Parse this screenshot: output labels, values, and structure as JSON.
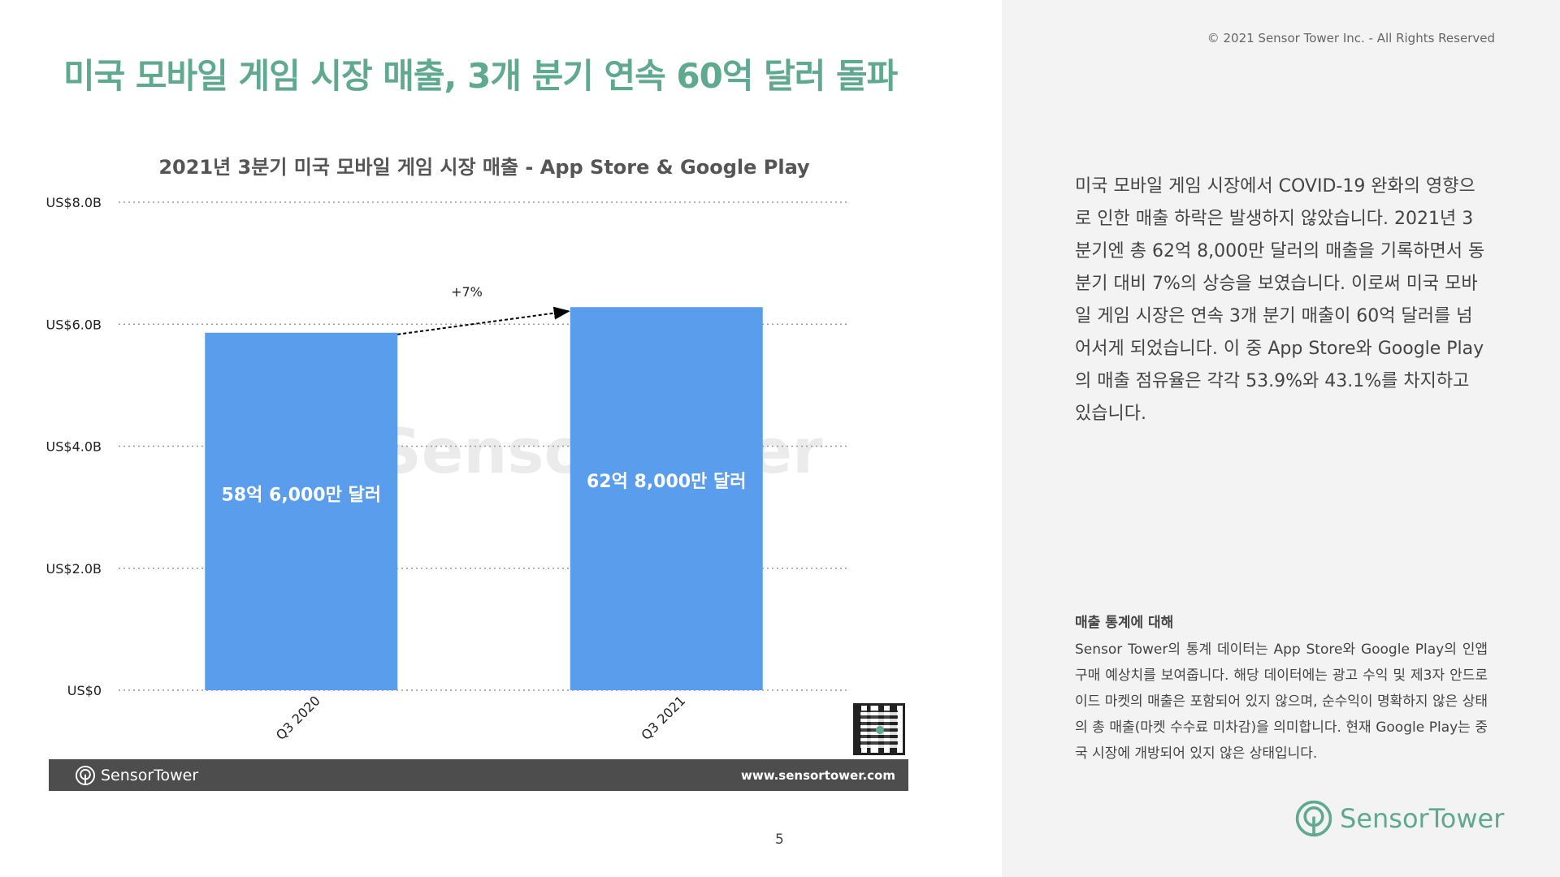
{
  "page": {
    "title": "미국 모바일 게임 시장 매출, 3개 분기 연속 60억 달러 돌파",
    "copyright": "© 2021 Sensor Tower Inc. - All Rights Reserved",
    "page_number": "5"
  },
  "chart_data": {
    "type": "bar",
    "title": "2021년 3분기 미국 모바일 게임 시장 매출 - App Store & Google Play",
    "categories": [
      "Q3 2020",
      "Q3 2021"
    ],
    "values": [
      5.86,
      6.28
    ],
    "value_unit": "US$ billions",
    "data_labels": [
      "58억 6,000만 달러",
      "62억 8,000만 달러"
    ],
    "ylim": [
      0,
      8
    ],
    "yticks": [
      0,
      2,
      4,
      6,
      8
    ],
    "ytick_labels": [
      "US$0",
      "US$2.0B",
      "US$4.0B",
      "US$6.0B",
      "US$8.0B"
    ],
    "grid": "horizontal dotted",
    "bar_color": "#5b9ded",
    "annotation": {
      "text": "+7%",
      "from": "Q3 2020",
      "to": "Q3 2021"
    }
  },
  "footer": {
    "brand": "SensorTower",
    "url": "www.sensortower.com"
  },
  "sidebar": {
    "body": "미국 모바일 게임 시장에서 COVID-19 완화의 영향으로 인한 매출 하락은 발생하지 않았습니다. 2021년 3분기엔 총 62억 8,000만 달러의 매출을 기록하면서 동 분기 대비 7%의 상승을 보였습니다. 이로써 미국 모바일 게임 시장은 연속 3개 분기 매출이 60억 달러를 넘어서게 되었습니다. 이 중 App Store와 Google Play의 매출 점유율은 각각 53.9%와 43.1%를 차지하고 있습니다.",
    "notes_heading": "매출 통계에 대해",
    "notes_body": "Sensor Tower의 통계 데이터는 App Store와 Google Play의 인앱 구매 예상치를 보여줍니다. 해당 데이터에는 광고 수익 및 제3자 안드로이드 마켓의 매출은 포함되어 있지 않으며, 순수익이 명확하지 않은 상태의 총 매출(마켓 수수료 미차감)을 의미합니다. 현재 Google Play는 중국 시장에 개방되어 있지 않은 상태입니다.",
    "brand": "SensorTower"
  },
  "colors": {
    "accent": "#5fa98f",
    "bar": "#5b9ded",
    "footer_bg": "#4d4d4d",
    "sidebar_bg": "#f3f3f3"
  }
}
